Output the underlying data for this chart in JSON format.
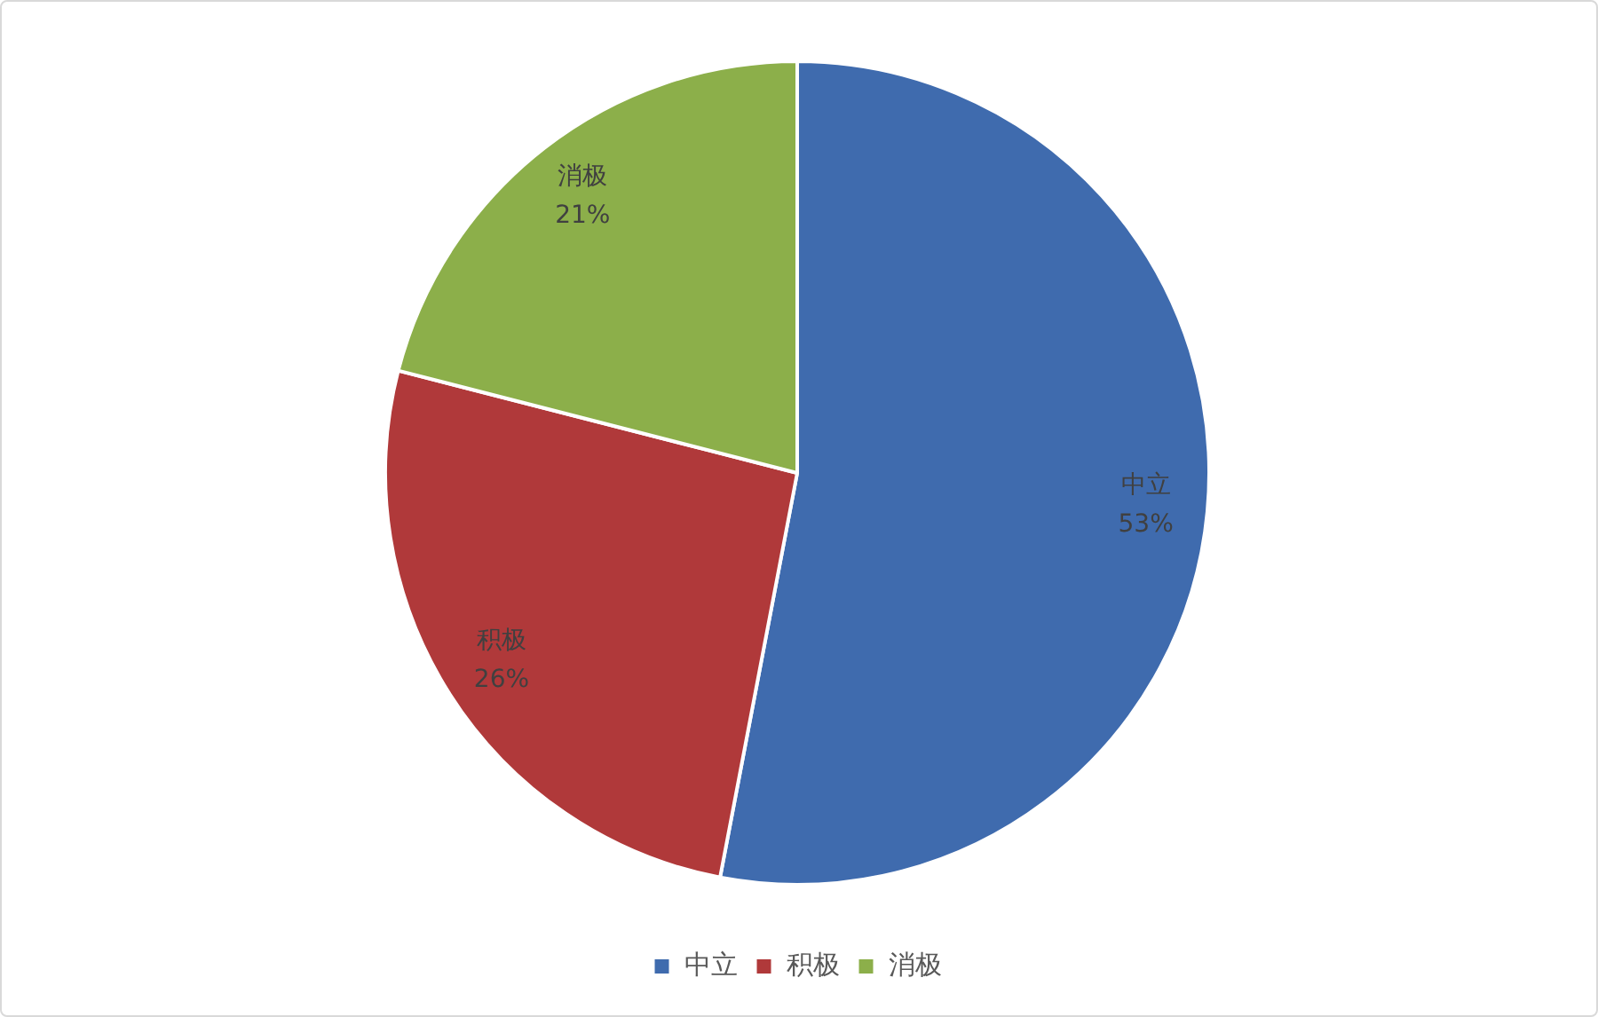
{
  "chart_data": {
    "type": "pie",
    "categories": [
      "中立",
      "积极",
      "消极"
    ],
    "values": [
      53,
      26,
      21
    ],
    "value_labels": [
      "53%",
      "26%",
      "21%"
    ],
    "colors": [
      "#3f6bae",
      "#b0393a",
      "#8caf4a"
    ],
    "legend": "bottom"
  }
}
